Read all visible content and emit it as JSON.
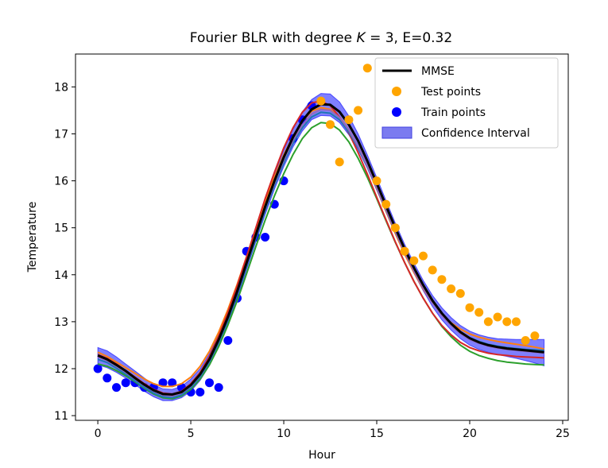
{
  "chart_data": {
    "type": "line",
    "title": "Fourier BLR with degree K = 3, E=0.32",
    "title_parts": {
      "prefix": "Fourier BLR with degree ",
      "k_symbol": "K",
      "suffix": " = 3, E=0.32"
    },
    "xlabel": "Hour",
    "ylabel": "Temperature",
    "xlim": [
      -1.2,
      25.3
    ],
    "ylim": [
      10.9,
      18.7
    ],
    "xticks": [
      0,
      5,
      10,
      15,
      20,
      25
    ],
    "xtick_labels": [
      "0",
      "5",
      "10",
      "15",
      "20",
      "25"
    ],
    "yticks": [
      11,
      12,
      13,
      14,
      15,
      16,
      17,
      18
    ],
    "ytick_labels": [
      "11",
      "12",
      "13",
      "14",
      "15",
      "16",
      "17",
      "18"
    ],
    "grid": false,
    "legend_position": "top-right",
    "legend": [
      {
        "label": "MMSE",
        "kind": "line",
        "color": "#000000"
      },
      {
        "label": "Test points",
        "kind": "marker",
        "color": "#ffa500"
      },
      {
        "label": "Train points",
        "kind": "marker",
        "color": "#0000ff"
      },
      {
        "label": "Confidence Interval",
        "kind": "patch",
        "color": "#7b7bf0"
      }
    ],
    "x": [
      0,
      0.5,
      1,
      1.5,
      2,
      2.5,
      3,
      3.5,
      4,
      4.5,
      5,
      5.5,
      6,
      6.5,
      7,
      7.5,
      8,
      8.5,
      9,
      9.5,
      10,
      10.5,
      11,
      11.5,
      12,
      12.5,
      13,
      13.5,
      14,
      14.5,
      15,
      15.5,
      16,
      16.5,
      17,
      17.5,
      18,
      18.5,
      19,
      19.5,
      20,
      20.5,
      21,
      21.5,
      22,
      22.5,
      23,
      23.5,
      24
    ],
    "mmse": [
      12.28,
      12.2,
      12.08,
      11.95,
      11.8,
      11.66,
      11.54,
      11.46,
      11.45,
      11.5,
      11.65,
      11.88,
      12.2,
      12.62,
      13.1,
      13.65,
      14.25,
      14.85,
      15.45,
      16.0,
      16.5,
      16.93,
      17.28,
      17.52,
      17.63,
      17.62,
      17.47,
      17.2,
      16.85,
      16.42,
      15.95,
      15.47,
      15.0,
      14.55,
      14.15,
      13.78,
      13.45,
      13.18,
      12.96,
      12.78,
      12.65,
      12.56,
      12.5,
      12.46,
      12.43,
      12.41,
      12.39,
      12.37,
      12.35
    ],
    "ci_upper": [
      12.45,
      12.38,
      12.25,
      12.1,
      11.95,
      11.8,
      11.66,
      11.57,
      11.56,
      11.62,
      11.78,
      12.0,
      12.32,
      12.73,
      13.21,
      13.76,
      14.36,
      14.97,
      15.58,
      16.14,
      16.66,
      17.1,
      17.47,
      17.73,
      17.86,
      17.85,
      17.68,
      17.38,
      17.0,
      16.55,
      16.07,
      15.58,
      15.1,
      14.65,
      14.25,
      13.88,
      13.56,
      13.3,
      13.09,
      12.92,
      12.8,
      12.72,
      12.67,
      12.64,
      12.63,
      12.62,
      12.62,
      12.62,
      12.62
    ],
    "ci_lower": [
      12.08,
      12.02,
      11.92,
      11.8,
      11.66,
      11.52,
      11.4,
      11.32,
      11.32,
      11.38,
      11.52,
      11.75,
      12.07,
      12.48,
      12.96,
      13.5,
      14.1,
      14.7,
      15.28,
      15.82,
      16.3,
      16.72,
      17.06,
      17.3,
      17.39,
      17.38,
      17.24,
      16.98,
      16.66,
      16.26,
      15.8,
      15.34,
      14.88,
      14.43,
      14.03,
      13.66,
      13.32,
      13.04,
      12.82,
      12.64,
      12.5,
      12.41,
      12.35,
      12.3,
      12.26,
      12.22,
      12.17,
      12.12,
      12.06
    ],
    "samples": [
      {
        "color": "#ff7f0e",
        "values": [
          12.35,
          12.26,
          12.14,
          12.02,
          11.9,
          11.78,
          11.68,
          11.62,
          11.62,
          11.68,
          11.82,
          12.05,
          12.37,
          12.78,
          13.26,
          13.8,
          14.38,
          14.97,
          15.55,
          16.08,
          16.55,
          16.95,
          17.27,
          17.48,
          17.56,
          17.52,
          17.36,
          17.08,
          16.72,
          16.3,
          15.83,
          15.35,
          14.88,
          14.44,
          14.05,
          13.7,
          13.4,
          13.16,
          12.98,
          12.84,
          12.74,
          12.67,
          12.62,
          12.58,
          12.55,
          12.52,
          12.49,
          12.46,
          12.42
        ]
      },
      {
        "color": "#2ca02c",
        "values": [
          12.1,
          12.05,
          11.96,
          11.85,
          11.72,
          11.58,
          11.46,
          11.38,
          11.36,
          11.42,
          11.56,
          11.78,
          12.08,
          12.47,
          12.93,
          13.45,
          14.02,
          14.6,
          15.16,
          15.68,
          16.15,
          16.56,
          16.9,
          17.13,
          17.24,
          17.22,
          17.08,
          16.83,
          16.48,
          16.07,
          15.62,
          15.15,
          14.69,
          14.26,
          13.86,
          13.5,
          13.18,
          12.9,
          12.68,
          12.5,
          12.37,
          12.28,
          12.22,
          12.17,
          12.14,
          12.12,
          12.1,
          12.09,
          12.08
        ]
      },
      {
        "color": "#d62728",
        "values": [
          12.3,
          12.22,
          12.1,
          11.96,
          11.82,
          11.68,
          11.56,
          11.48,
          11.46,
          11.52,
          11.68,
          11.92,
          12.26,
          12.7,
          13.2,
          13.77,
          14.38,
          15.0,
          15.62,
          16.18,
          16.7,
          17.13,
          17.46,
          17.66,
          17.7,
          17.6,
          17.36,
          17.02,
          16.6,
          16.14,
          15.65,
          15.17,
          14.7,
          14.26,
          13.86,
          13.5,
          13.18,
          12.92,
          12.72,
          12.56,
          12.45,
          12.38,
          12.33,
          12.3,
          12.28,
          12.26,
          12.25,
          12.24,
          12.23
        ]
      },
      {
        "color": "#1f77b4",
        "values": [
          12.2,
          12.13,
          12.01,
          11.88,
          11.74,
          11.6,
          11.48,
          11.4,
          11.38,
          11.44,
          11.59,
          11.82,
          12.14,
          12.55,
          13.03,
          13.58,
          14.17,
          14.77,
          15.36,
          15.9,
          16.38,
          16.8,
          17.13,
          17.36,
          17.46,
          17.44,
          17.3,
          17.04,
          16.7,
          16.29,
          15.84,
          15.37,
          14.91,
          14.48,
          14.09,
          13.73,
          13.42,
          13.16,
          12.95,
          12.78,
          12.66,
          12.58,
          12.52,
          12.48,
          12.45,
          12.43,
          12.41,
          12.4,
          12.39
        ]
      },
      {
        "color": "#9467bd",
        "values": [
          12.25,
          12.17,
          12.05,
          11.92,
          11.78,
          11.64,
          11.52,
          11.44,
          11.42,
          11.48,
          11.63,
          11.86,
          12.18,
          12.6,
          13.08,
          13.63,
          14.22,
          14.82,
          15.41,
          15.95,
          16.44,
          16.86,
          17.19,
          17.42,
          17.52,
          17.5,
          17.35,
          17.08,
          16.73,
          16.31,
          15.85,
          15.38,
          14.92,
          14.48,
          14.08,
          13.72,
          13.4,
          13.13,
          12.92,
          12.75,
          12.62,
          12.54,
          12.48,
          12.44,
          12.41,
          12.39,
          12.37,
          12.35,
          12.33
        ]
      }
    ],
    "train_points": {
      "x": [
        0,
        0.5,
        1,
        1.5,
        2,
        2.5,
        3,
        3.5,
        4,
        4.5,
        5,
        5.5,
        6,
        6.5,
        7,
        7.5,
        8,
        8.5,
        9,
        9.5,
        10,
        10.5,
        11,
        11.5
      ],
      "y": [
        12.0,
        11.8,
        11.6,
        11.7,
        11.7,
        11.6,
        11.6,
        11.7,
        11.7,
        11.6,
        11.5,
        11.5,
        11.7,
        11.6,
        12.6,
        13.5,
        14.5,
        14.8,
        14.8,
        15.5,
        16.0,
        16.9,
        17.3,
        17.6
      ]
    },
    "test_points": {
      "x": [
        12,
        12.5,
        13,
        13.5,
        14,
        14.5,
        15,
        15.5,
        16,
        16.5,
        17,
        17.5,
        18,
        18.5,
        19,
        19.5,
        20,
        20.5,
        21,
        21.5,
        22,
        22.5,
        23,
        23.5
      ],
      "y": [
        17.7,
        17.2,
        16.4,
        17.3,
        17.5,
        18.4,
        16.0,
        15.5,
        15.0,
        14.5,
        14.3,
        14.4,
        14.1,
        13.9,
        13.7,
        13.6,
        13.3,
        13.2,
        13.0,
        13.1,
        13.0,
        13.0,
        12.6,
        12.7
      ]
    }
  }
}
